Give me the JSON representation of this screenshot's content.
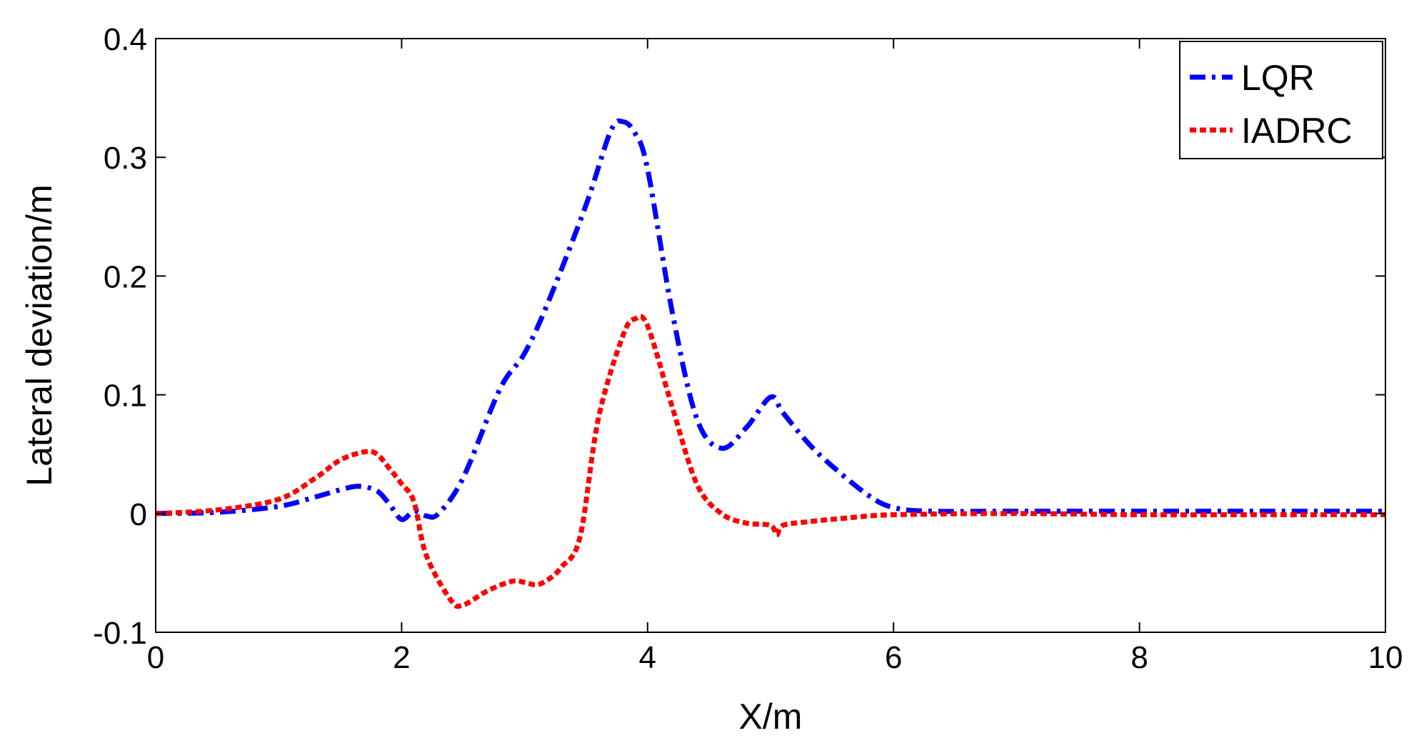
{
  "chart_data": {
    "type": "line",
    "xlabel": "X/m",
    "ylabel": "Lateral deviation/m",
    "xlim": [
      0,
      10
    ],
    "ylim": [
      -0.1,
      0.4
    ],
    "xticks": [
      0,
      2,
      4,
      6,
      8,
      10
    ],
    "xtick_labels": [
      "0",
      "2",
      "4",
      "6",
      "8",
      "10"
    ],
    "yticks": [
      -0.1,
      0,
      0.1,
      0.2,
      0.3,
      0.4
    ],
    "ytick_labels": [
      "-0.1",
      "0",
      "0.1",
      "0.2",
      "0.3",
      "0.4"
    ],
    "grid": false,
    "legend_position": "top-right",
    "series": [
      {
        "name": "LQR",
        "color": "#0000ff",
        "style": "dash-dot",
        "x": [
          0,
          0.5,
          1.0,
          1.3,
          1.5,
          1.65,
          1.8,
          1.9,
          2.0,
          2.1,
          2.2,
          2.3,
          2.5,
          2.8,
          3.0,
          3.2,
          3.5,
          3.7,
          3.8,
          3.9,
          4.0,
          4.2,
          4.4,
          4.6,
          4.8,
          5.0,
          5.1,
          5.3,
          5.5,
          5.8,
          6.0,
          6.3,
          7.0,
          8.0,
          9.0,
          10.0
        ],
        "y": [
          0,
          0.001,
          0.006,
          0.014,
          0.02,
          0.023,
          0.019,
          0.008,
          -0.005,
          0.002,
          -0.002,
          0.0,
          0.03,
          0.105,
          0.135,
          0.18,
          0.26,
          0.322,
          0.33,
          0.32,
          0.29,
          0.17,
          0.08,
          0.055,
          0.072,
          0.098,
          0.085,
          0.06,
          0.04,
          0.015,
          0.005,
          0.002,
          0.002,
          0.002,
          0.002,
          0.002
        ]
      },
      {
        "name": "IADRC",
        "color": "#ff0000",
        "style": "dotted",
        "x": [
          0,
          0.5,
          1.0,
          1.3,
          1.5,
          1.7,
          1.8,
          1.9,
          2.0,
          2.1,
          2.2,
          2.4,
          2.5,
          2.7,
          2.9,
          3.0,
          3.1,
          3.2,
          3.3,
          3.45,
          3.6,
          3.8,
          3.9,
          4.0,
          4.2,
          4.4,
          4.6,
          4.8,
          5.0,
          5.05,
          5.1,
          5.3,
          5.6,
          6.0,
          7.0,
          8.0,
          9.0,
          10.0
        ],
        "y": [
          0,
          0.003,
          0.012,
          0.03,
          0.045,
          0.052,
          0.05,
          0.038,
          0.025,
          0.01,
          -0.035,
          -0.073,
          -0.077,
          -0.065,
          -0.057,
          -0.058,
          -0.06,
          -0.055,
          -0.045,
          -0.02,
          0.08,
          0.15,
          0.164,
          0.158,
          0.09,
          0.025,
          0.0,
          -0.008,
          -0.01,
          -0.018,
          -0.01,
          -0.007,
          -0.004,
          -0.001,
          0.0,
          -0.001,
          -0.001,
          -0.001
        ]
      }
    ]
  }
}
